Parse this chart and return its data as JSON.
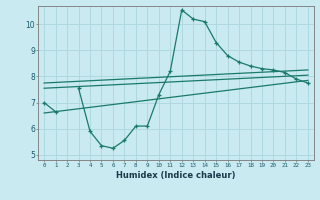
{
  "xlabel": "Humidex (Indice chaleur)",
  "background_color": "#c8eaf0",
  "grid_color": "#b0d8e0",
  "line_color": "#1a7a6a",
  "x_values": [
    0,
    1,
    2,
    3,
    4,
    5,
    6,
    7,
    8,
    9,
    10,
    11,
    12,
    13,
    14,
    15,
    16,
    17,
    18,
    19,
    20,
    21,
    22,
    23
  ],
  "main_curve": [
    7.0,
    6.65,
    null,
    7.55,
    5.9,
    5.35,
    5.25,
    5.55,
    6.1,
    6.1,
    7.3,
    8.2,
    10.55,
    10.2,
    10.1,
    9.3,
    8.8,
    8.55,
    8.4,
    8.3,
    8.25,
    8.15,
    7.9,
    7.75
  ],
  "line_straight1": [
    [
      0,
      7.75
    ],
    [
      23,
      8.25
    ]
  ],
  "line_straight2": [
    [
      0,
      7.55
    ],
    [
      23,
      8.05
    ]
  ],
  "line_straight3": [
    [
      0,
      6.6
    ],
    [
      23,
      7.85
    ]
  ],
  "xlim": [
    -0.5,
    23.5
  ],
  "ylim": [
    4.8,
    10.7
  ],
  "yticks": [
    5,
    6,
    7,
    8,
    9,
    10
  ],
  "xticks": [
    0,
    1,
    2,
    3,
    4,
    5,
    6,
    7,
    8,
    9,
    10,
    11,
    12,
    13,
    14,
    15,
    16,
    17,
    18,
    19,
    20,
    21,
    22,
    23
  ]
}
